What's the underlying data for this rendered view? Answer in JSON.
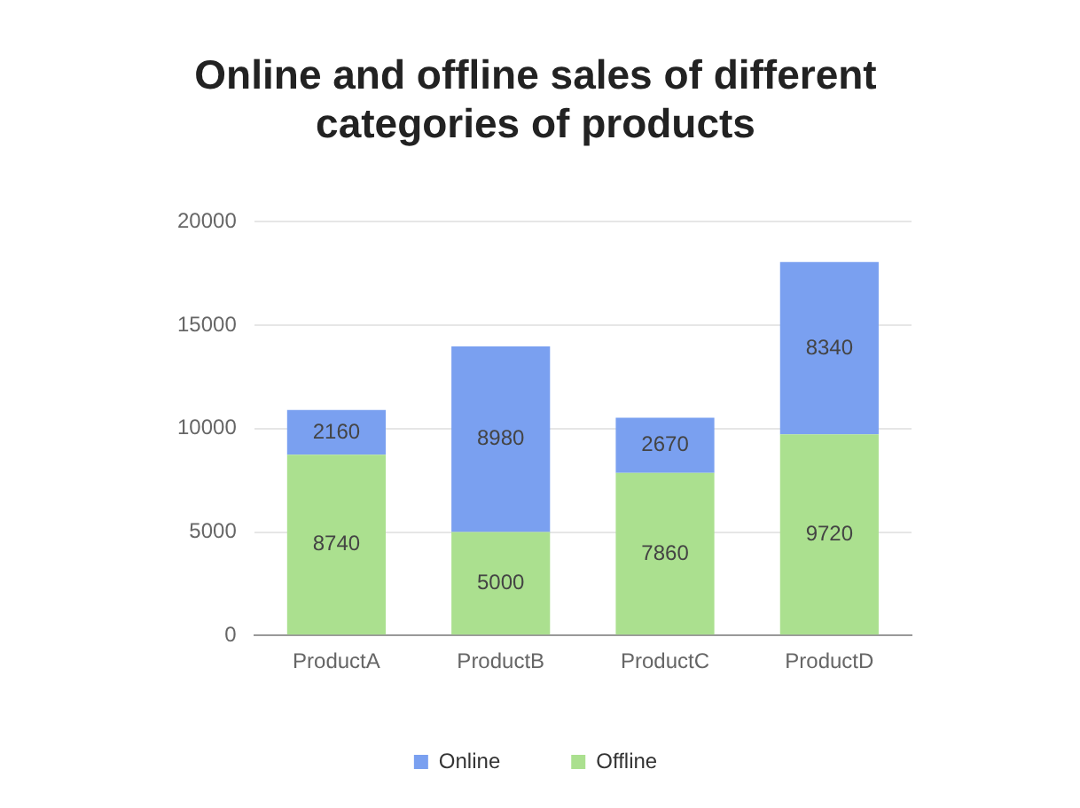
{
  "chart_data": {
    "type": "bar",
    "title": "Online and offline sales of different categories of products",
    "categories": [
      "ProductA",
      "ProductB",
      "ProductC",
      "ProductD"
    ],
    "stacked": true,
    "series": [
      {
        "name": "Offline",
        "color": "#abe08f",
        "values": [
          8740,
          5000,
          7860,
          9720
        ]
      },
      {
        "name": "Online",
        "color": "#7aa0f0",
        "values": [
          2160,
          8980,
          2670,
          8340
        ]
      }
    ],
    "ylim": [
      0,
      20000
    ],
    "yticks": [
      0,
      5000,
      10000,
      15000,
      20000
    ],
    "grid": "y",
    "legend": "bottom",
    "data_labels": true
  }
}
